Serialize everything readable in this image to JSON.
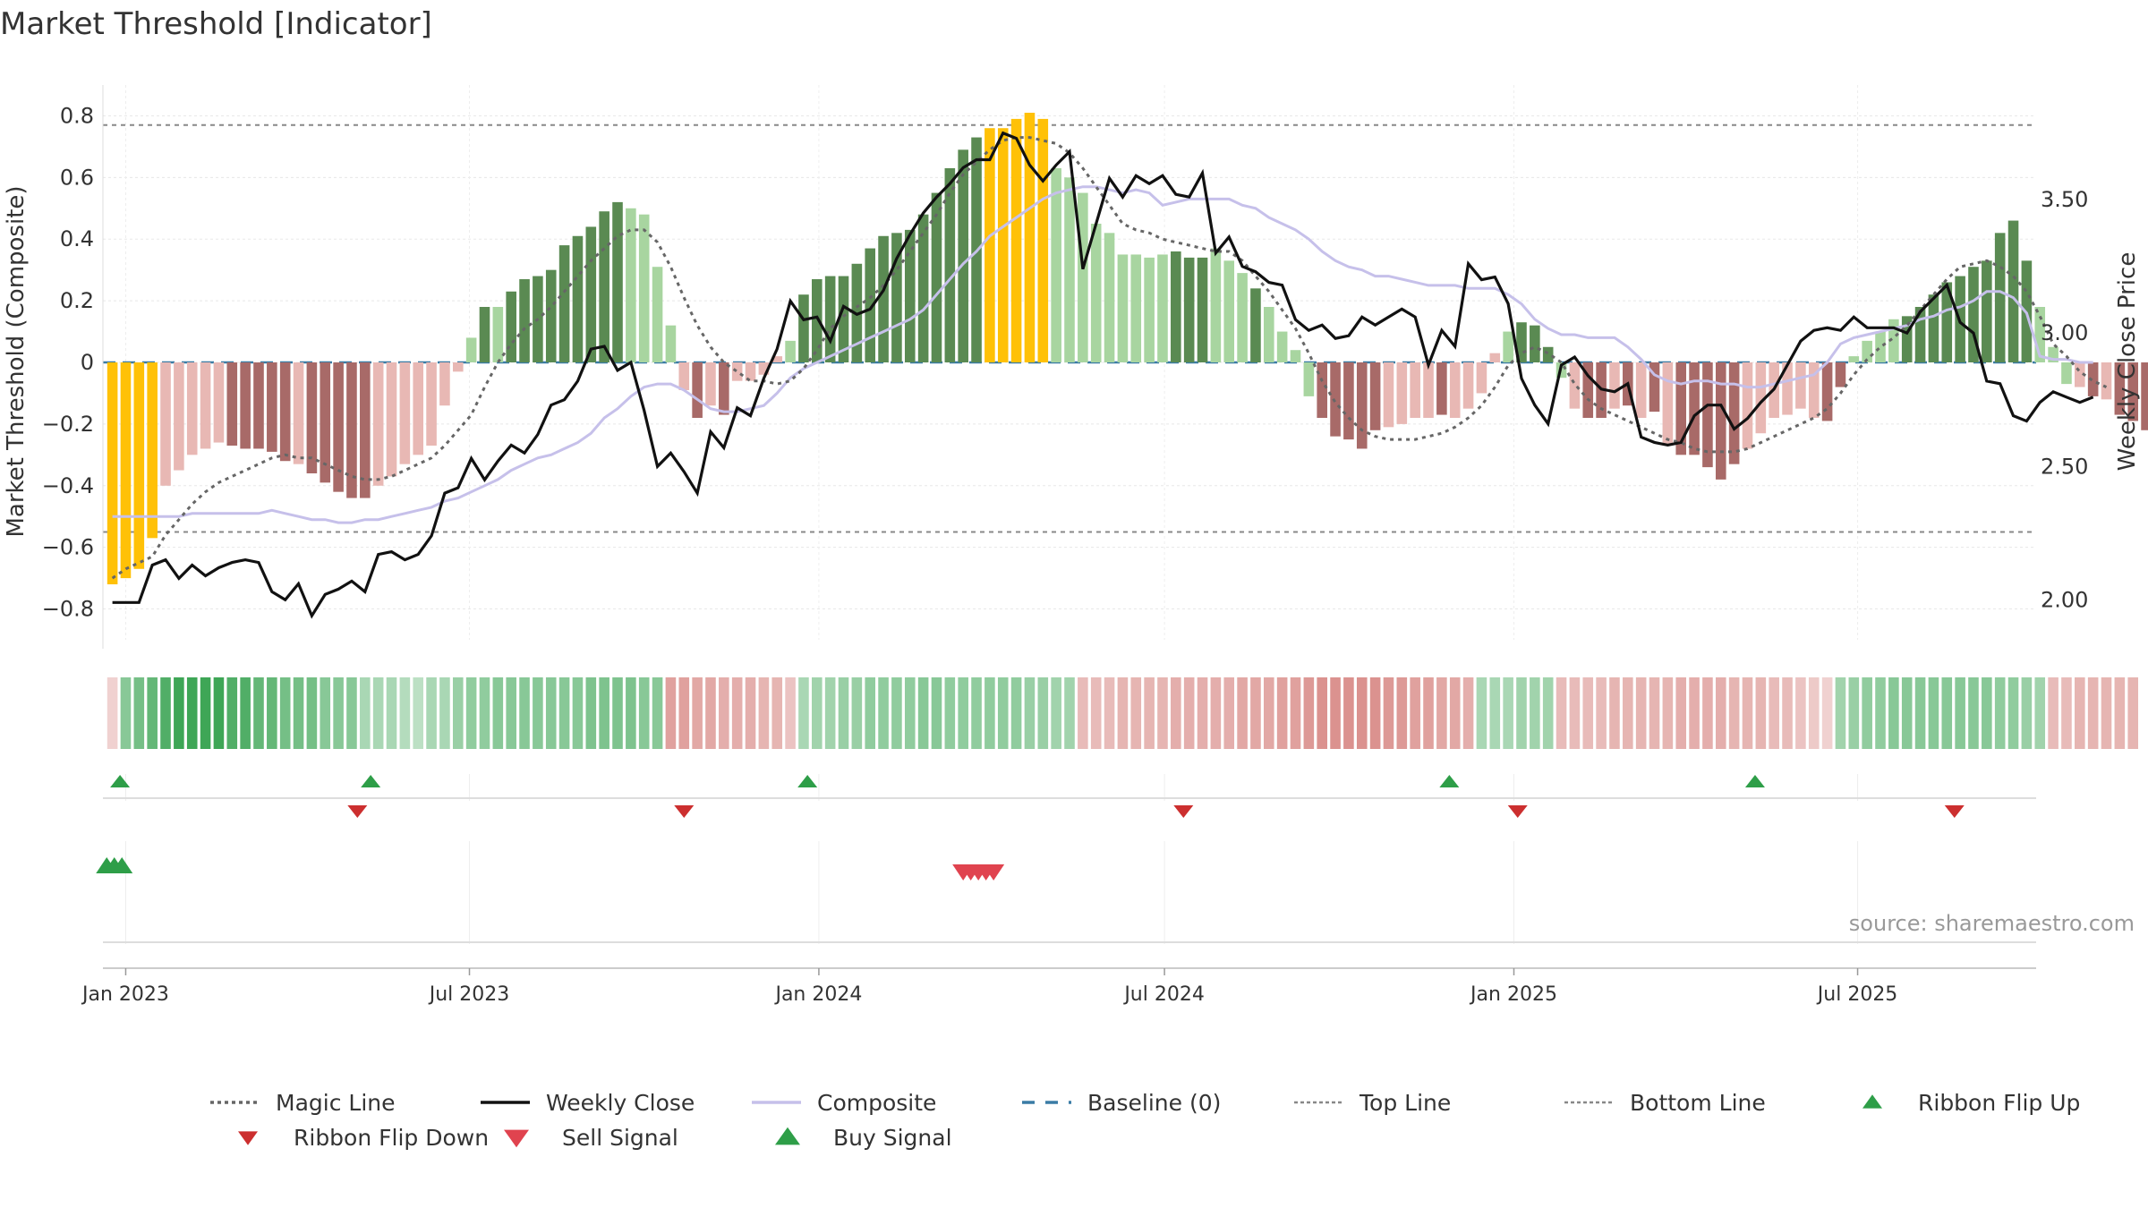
{
  "chart_data": {
    "type": "bar",
    "title": "Market Threshold [Indicator]",
    "ylabel": "Market Threshold (Composite)",
    "y2label": "Weekly Close Price",
    "ylim": [
      -0.9,
      0.9
    ],
    "y2lim": [
      1.85,
      3.93
    ],
    "yticks": [
      0.8,
      0.6,
      0.4,
      0.2,
      0,
      -0.2,
      -0.4,
      -0.6,
      -0.8
    ],
    "y2ticks": [
      3.5,
      3.0,
      2.5,
      2.0
    ],
    "ytick_labels": [
      "0.8",
      "0.6",
      "0.4",
      "0.2",
      "0",
      "−0.2",
      "−0.4",
      "−0.6",
      "−0.8"
    ],
    "y2tick_labels": [
      "3.50",
      "3.00",
      "2.50",
      "2.00"
    ],
    "x_range": [
      "2022-12-20",
      "2025-10-03"
    ],
    "xticks": [
      {
        "date": "2023-01-01",
        "label": "Jan 2023"
      },
      {
        "date": "2023-07-01",
        "label": "Jul 2023"
      },
      {
        "date": "2024-01-01",
        "label": "Jan 2024"
      },
      {
        "date": "2024-07-01",
        "label": "Jul 2024"
      },
      {
        "date": "2025-01-01",
        "label": "Jan 2025"
      },
      {
        "date": "2025-07-01",
        "label": "Jul 2025"
      }
    ],
    "top_line": 0.77,
    "bottom_line": -0.55,
    "baseline": 0,
    "grid": true,
    "legend_position": "bottom",
    "source_note": "source: sharemaestro.com",
    "colors": {
      "strong_up": "#5a8a52",
      "weak_up": "#a8d5a0",
      "strong_down": "#a86a68",
      "weak_down": "#e8b8b4",
      "extreme": "#ffc107",
      "weekly_close": "#111111",
      "composite": "#c6c0ea",
      "magic_line": "#666666",
      "baseline": "#3a7ca5",
      "threshold_lines": "#888888",
      "flip_up": "#2e9e48",
      "flip_down": "#cc2f2f",
      "buy": "#2e9e48",
      "sell": "#e0434f"
    },
    "composite_bars": {
      "start": "2022-12-25",
      "step_days": 7,
      "values": [
        -0.72,
        -0.7,
        -0.67,
        -0.57,
        -0.4,
        -0.35,
        -0.3,
        -0.28,
        -0.26,
        -0.27,
        -0.28,
        -0.28,
        -0.29,
        -0.32,
        -0.33,
        -0.36,
        -0.39,
        -0.42,
        -0.44,
        -0.44,
        -0.4,
        -0.37,
        -0.33,
        -0.3,
        -0.27,
        -0.14,
        -0.03,
        0.08,
        0.18,
        0.18,
        0.23,
        0.27,
        0.28,
        0.3,
        0.38,
        0.41,
        0.44,
        0.49,
        0.52,
        0.5,
        0.48,
        0.31,
        0.12,
        -0.09,
        -0.18,
        -0.14,
        -0.17,
        -0.06,
        -0.06,
        -0.04,
        0.02,
        0.07,
        0.22,
        0.27,
        0.28,
        0.28,
        0.32,
        0.37,
        0.41,
        0.42,
        0.43,
        0.48,
        0.55,
        0.63,
        0.69,
        0.73,
        0.76,
        0.76,
        0.79,
        0.81,
        0.79,
        0.63,
        0.6,
        0.55,
        0.45,
        0.42,
        0.35,
        0.35,
        0.34,
        0.35,
        0.36,
        0.34,
        0.34,
        0.37,
        0.33,
        0.29,
        0.24,
        0.18,
        0.1,
        0.04,
        -0.11,
        -0.18,
        -0.24,
        -0.25,
        -0.28,
        -0.22,
        -0.21,
        -0.2,
        -0.18,
        -0.18,
        -0.17,
        -0.18,
        -0.15,
        -0.1,
        0.03,
        0.1,
        0.13,
        0.12,
        0.05,
        -0.05,
        -0.15,
        -0.18,
        -0.18,
        -0.15,
        -0.14,
        -0.18,
        -0.16,
        -0.27,
        -0.3,
        -0.3,
        -0.34,
        -0.38,
        -0.33,
        -0.28,
        -0.23,
        -0.18,
        -0.17,
        -0.15,
        -0.18,
        -0.19,
        -0.08,
        0.02,
        0.07,
        0.1,
        0.14,
        0.15,
        0.18,
        0.22,
        0.26,
        0.28,
        0.31,
        0.33,
        0.42,
        0.46,
        0.33,
        0.18,
        0.05,
        -0.07,
        -0.08,
        -0.11,
        -0.12,
        -0.17,
        -0.19,
        -0.22
      ],
      "colors": [
        "Y",
        "Y",
        "Y",
        "Y",
        "LR",
        "LR",
        "LR",
        "LR",
        "LR",
        "DR",
        "DR",
        "DR",
        "DR",
        "DR",
        "LR",
        "DR",
        "DR",
        "DR",
        "DR",
        "DR",
        "LR",
        "LR",
        "LR",
        "LR",
        "LR",
        "LR",
        "LR",
        "LG",
        "DG",
        "LG",
        "DG",
        "DG",
        "DG",
        "DG",
        "DG",
        "DG",
        "DG",
        "DG",
        "DG",
        "LG",
        "LG",
        "LG",
        "LG",
        "LR",
        "DR",
        "LR",
        "DR",
        "LR",
        "LR",
        "LR",
        "LR",
        "LG",
        "DG",
        "DG",
        "DG",
        "DG",
        "DG",
        "DG",
        "DG",
        "DG",
        "DG",
        "DG",
        "DG",
        "DG",
        "DG",
        "DG",
        "Y",
        "Y",
        "Y",
        "Y",
        "Y",
        "LG",
        "LG",
        "LG",
        "LG",
        "LG",
        "LG",
        "LG",
        "LG",
        "LG",
        "DG",
        "DG",
        "DG",
        "LG",
        "LG",
        "LG",
        "DG",
        "LG",
        "LG",
        "LG",
        "LG",
        "DR",
        "DR",
        "DR",
        "DR",
        "DR",
        "LR",
        "LR",
        "LR",
        "LR",
        "DR",
        "LR",
        "LR",
        "LR",
        "LR",
        "LG",
        "DG",
        "DG",
        "DG",
        "LG",
        "LR",
        "DR",
        "DR",
        "LR",
        "DR",
        "LR",
        "DR",
        "LR",
        "DR",
        "DR",
        "DR",
        "DR",
        "DR",
        "LR",
        "LR",
        "LR",
        "LR",
        "LR",
        "LR",
        "DR",
        "DR",
        "LG",
        "LG",
        "LG",
        "LG",
        "DG",
        "DG",
        "DG",
        "DG",
        "DG",
        "DG",
        "DG",
        "DG",
        "DG",
        "DG",
        "LG",
        "LG",
        "LG",
        "LR",
        "DR",
        "LR",
        "DR",
        "DR",
        "DR",
        "DR"
      ]
    },
    "weekly_close": [
      1.99,
      1.99,
      1.99,
      2.13,
      2.15,
      2.08,
      2.13,
      2.09,
      2.12,
      2.14,
      2.15,
      2.14,
      2.03,
      2.0,
      2.06,
      1.94,
      2.02,
      2.04,
      2.07,
      2.03,
      2.17,
      2.18,
      2.15,
      2.17,
      2.24,
      2.4,
      2.42,
      2.53,
      2.45,
      2.52,
      2.58,
      2.55,
      2.62,
      2.73,
      2.75,
      2.82,
      2.94,
      2.95,
      2.86,
      2.89,
      2.71,
      2.5,
      2.55,
      2.48,
      2.4,
      2.63,
      2.57,
      2.72,
      2.69,
      2.83,
      2.94,
      3.12,
      3.05,
      3.06,
      2.97,
      3.1,
      3.07,
      3.09,
      3.16,
      3.28,
      3.37,
      3.45,
      3.51,
      3.56,
      3.62,
      3.65,
      3.65,
      3.75,
      3.73,
      3.63,
      3.57,
      3.63,
      3.68,
      3.24,
      3.41,
      3.58,
      3.51,
      3.59,
      3.56,
      3.59,
      3.52,
      3.51,
      3.6,
      3.3,
      3.36,
      3.25,
      3.23,
      3.19,
      3.18,
      3.05,
      3.01,
      3.03,
      2.98,
      2.99,
      3.06,
      3.03,
      3.06,
      3.09,
      3.06,
      2.88,
      3.01,
      2.95,
      3.26,
      3.2,
      3.21,
      3.11,
      2.83,
      2.73,
      2.66,
      2.88,
      2.91,
      2.84,
      2.79,
      2.78,
      2.81,
      2.61,
      2.59,
      2.58,
      2.59,
      2.69,
      2.73,
      2.73,
      2.64,
      2.68,
      2.74,
      2.79,
      2.88,
      2.97,
      3.01,
      3.02,
      3.01,
      3.06,
      3.02,
      3.02,
      3.02,
      3.0,
      3.08,
      3.13,
      3.18,
      3.04,
      3.0,
      2.82,
      2.81,
      2.69,
      2.67,
      2.74,
      2.78,
      2.76,
      2.74,
      2.76
    ],
    "composite_line": [
      -0.5,
      -0.5,
      -0.5,
      -0.5,
      -0.5,
      -0.5,
      -0.49,
      -0.49,
      -0.49,
      -0.49,
      -0.49,
      -0.49,
      -0.48,
      -0.49,
      -0.5,
      -0.51,
      -0.51,
      -0.52,
      -0.52,
      -0.51,
      -0.51,
      -0.5,
      -0.49,
      -0.48,
      -0.47,
      -0.45,
      -0.44,
      -0.42,
      -0.4,
      -0.38,
      -0.35,
      -0.33,
      -0.31,
      -0.3,
      -0.28,
      -0.26,
      -0.23,
      -0.18,
      -0.15,
      -0.11,
      -0.08,
      -0.07,
      -0.07,
      -0.09,
      -0.12,
      -0.15,
      -0.16,
      -0.16,
      -0.15,
      -0.14,
      -0.1,
      -0.05,
      -0.02,
      0.0,
      0.02,
      0.04,
      0.06,
      0.08,
      0.1,
      0.12,
      0.14,
      0.17,
      0.22,
      0.27,
      0.32,
      0.36,
      0.41,
      0.44,
      0.47,
      0.5,
      0.53,
      0.55,
      0.56,
      0.57,
      0.57,
      0.56,
      0.55,
      0.56,
      0.55,
      0.51,
      0.52,
      0.53,
      0.53,
      0.53,
      0.53,
      0.51,
      0.5,
      0.47,
      0.45,
      0.43,
      0.4,
      0.36,
      0.33,
      0.31,
      0.3,
      0.28,
      0.28,
      0.27,
      0.26,
      0.25,
      0.25,
      0.25,
      0.24,
      0.24,
      0.24,
      0.22,
      0.19,
      0.14,
      0.11,
      0.09,
      0.09,
      0.08,
      0.08,
      0.08,
      0.05,
      0.01,
      -0.04,
      -0.06,
      -0.07,
      -0.06,
      -0.06,
      -0.07,
      -0.07,
      -0.08,
      -0.08,
      -0.07,
      -0.06,
      -0.05,
      -0.04,
      0.0,
      0.06,
      0.08,
      0.09,
      0.1,
      0.11,
      0.12,
      0.14,
      0.15,
      0.17,
      0.18,
      0.2,
      0.23,
      0.23,
      0.21,
      0.16,
      0.02,
      0.01,
      0.01,
      0.0,
      0.0
    ],
    "magic_line": [
      -0.7,
      -0.67,
      -0.65,
      -0.63,
      -0.56,
      -0.51,
      -0.46,
      -0.42,
      -0.39,
      -0.37,
      -0.35,
      -0.33,
      -0.31,
      -0.3,
      -0.31,
      -0.31,
      -0.33,
      -0.35,
      -0.37,
      -0.38,
      -0.38,
      -0.37,
      -0.35,
      -0.33,
      -0.31,
      -0.27,
      -0.22,
      -0.17,
      -0.08,
      0.0,
      0.06,
      0.11,
      0.14,
      0.18,
      0.23,
      0.28,
      0.33,
      0.37,
      0.41,
      0.43,
      0.43,
      0.39,
      0.31,
      0.21,
      0.12,
      0.05,
      0.0,
      -0.03,
      -0.06,
      -0.06,
      -0.07,
      -0.06,
      -0.02,
      0.04,
      0.11,
      0.15,
      0.18,
      0.21,
      0.25,
      0.3,
      0.36,
      0.42,
      0.48,
      0.55,
      0.61,
      0.65,
      0.69,
      0.72,
      0.73,
      0.73,
      0.72,
      0.71,
      0.68,
      0.63,
      0.57,
      0.51,
      0.45,
      0.43,
      0.42,
      0.4,
      0.39,
      0.38,
      0.37,
      0.36,
      0.36,
      0.33,
      0.28,
      0.23,
      0.17,
      0.11,
      0.03,
      -0.06,
      -0.13,
      -0.18,
      -0.22,
      -0.24,
      -0.25,
      -0.25,
      -0.25,
      -0.24,
      -0.23,
      -0.21,
      -0.18,
      -0.14,
      -0.08,
      -0.01,
      0.03,
      0.05,
      0.03,
      0.0,
      -0.07,
      -0.12,
      -0.15,
      -0.17,
      -0.19,
      -0.21,
      -0.23,
      -0.25,
      -0.26,
      -0.28,
      -0.29,
      -0.29,
      -0.29,
      -0.28,
      -0.26,
      -0.24,
      -0.22,
      -0.2,
      -0.18,
      -0.15,
      -0.1,
      -0.04,
      0.01,
      0.05,
      0.08,
      0.12,
      0.17,
      0.22,
      0.27,
      0.31,
      0.32,
      0.33,
      0.31,
      0.28,
      0.23,
      0.15,
      0.06,
      0.02,
      -0.03,
      -0.06,
      -0.08
    ],
    "ribbon": {
      "levels": [
        -0.15,
        0.5,
        0.6,
        0.7,
        0.8,
        0.9,
        0.9,
        0.9,
        0.9,
        0.8,
        0.8,
        0.7,
        0.7,
        0.6,
        0.6,
        0.6,
        0.5,
        0.5,
        0.5,
        0.3,
        0.3,
        0.3,
        0.25,
        0.2,
        0.3,
        0.3,
        0.4,
        0.45,
        0.45,
        0.5,
        0.5,
        0.5,
        0.5,
        0.5,
        0.5,
        0.5,
        0.55,
        0.55,
        0.55,
        0.55,
        0.5,
        0.5,
        -0.5,
        -0.5,
        -0.45,
        -0.45,
        -0.4,
        -0.4,
        -0.4,
        -0.35,
        -0.35,
        -0.25,
        0.3,
        0.35,
        0.35,
        0.4,
        0.4,
        0.45,
        0.45,
        0.45,
        0.45,
        0.5,
        0.5,
        0.45,
        0.45,
        0.45,
        0.45,
        0.45,
        0.45,
        0.4,
        0.4,
        0.35,
        0.35,
        -0.3,
        -0.3,
        -0.3,
        -0.35,
        -0.35,
        -0.35,
        -0.35,
        -0.4,
        -0.4,
        -0.4,
        -0.4,
        -0.4,
        -0.45,
        -0.45,
        -0.45,
        -0.5,
        -0.5,
        -0.55,
        -0.6,
        -0.6,
        -0.6,
        -0.6,
        -0.6,
        -0.55,
        -0.55,
        -0.5,
        -0.5,
        -0.45,
        -0.45,
        -0.4,
        0.3,
        0.3,
        0.3,
        0.35,
        0.35,
        0.35,
        -0.3,
        -0.3,
        -0.3,
        -0.3,
        -0.35,
        -0.35,
        -0.35,
        -0.35,
        -0.35,
        -0.4,
        -0.4,
        -0.4,
        -0.4,
        -0.35,
        -0.35,
        -0.35,
        -0.3,
        -0.3,
        -0.25,
        -0.2,
        -0.15,
        0.35,
        0.4,
        0.45,
        0.45,
        0.5,
        0.5,
        0.5,
        0.5,
        0.5,
        0.5,
        0.5,
        0.5,
        0.45,
        0.45,
        0.4,
        0.35,
        -0.3,
        -0.3,
        -0.35,
        -0.35,
        -0.35,
        -0.35,
        -0.35
      ]
    },
    "ribbon_flip_up": [
      "2022-12-29",
      "2023-05-10",
      "2023-12-26",
      "2024-11-28",
      "2025-05-08"
    ],
    "ribbon_flip_down": [
      "2023-05-03",
      "2023-10-22",
      "2024-07-11",
      "2025-01-03",
      "2025-08-21"
    ],
    "buy_signals": [
      "2022-12-22",
      "2022-12-26",
      "2022-12-30"
    ],
    "sell_signals": [
      "2024-03-17",
      "2024-03-21",
      "2024-03-25",
      "2024-03-29",
      "2024-04-02"
    ],
    "legend": [
      {
        "label": "Magic Line",
        "kind": "dotted",
        "color": "#666666"
      },
      {
        "label": "Weekly Close",
        "kind": "solid",
        "color": "#111111"
      },
      {
        "label": "Composite",
        "kind": "solid",
        "color": "#c6c0ea"
      },
      {
        "label": "Baseline (0)",
        "kind": "dashed",
        "color": "#3a7ca5"
      },
      {
        "label": "Top Line",
        "kind": "dotted-light",
        "color": "#888888"
      },
      {
        "label": "Bottom Line",
        "kind": "dotted-light",
        "color": "#888888"
      },
      {
        "label": "Ribbon Flip Up",
        "kind": "tri-up-small",
        "color": "#2e9e48"
      },
      {
        "label": "Ribbon Flip Down",
        "kind": "tri-down-small",
        "color": "#cc2f2f"
      },
      {
        "label": "Sell Signal",
        "kind": "tri-down",
        "color": "#e0434f"
      },
      {
        "label": "Buy Signal",
        "kind": "tri-up",
        "color": "#2e9e48"
      }
    ]
  }
}
